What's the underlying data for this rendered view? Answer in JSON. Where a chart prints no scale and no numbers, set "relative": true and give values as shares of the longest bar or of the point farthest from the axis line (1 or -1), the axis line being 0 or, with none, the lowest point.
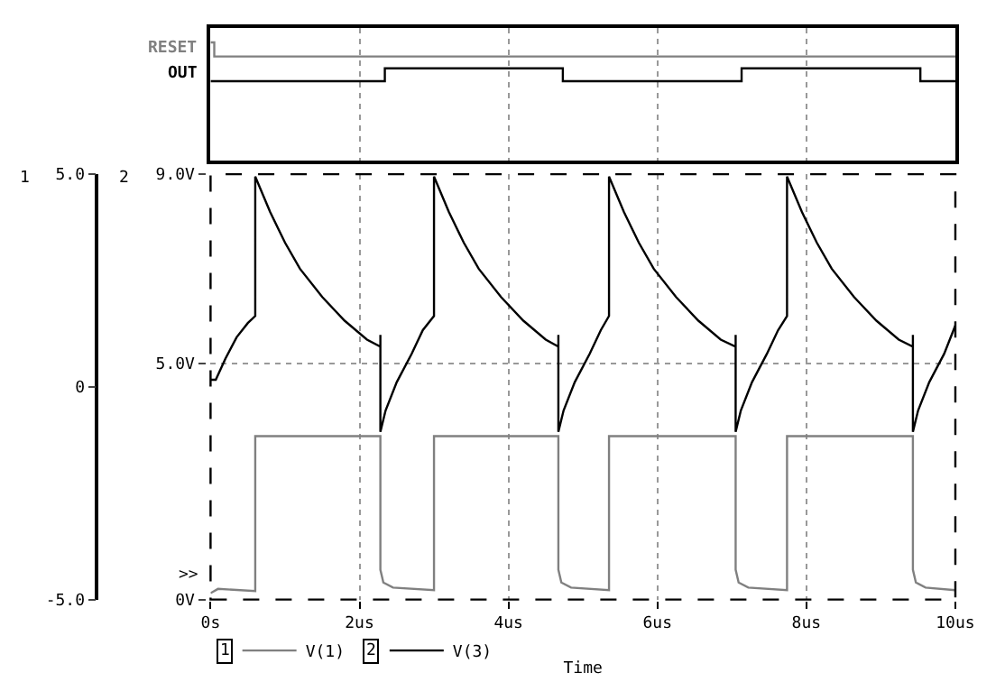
{
  "chart_data": [
    {
      "type": "step",
      "relative": true,
      "xlim": [
        0,
        10
      ],
      "grid": "x",
      "tick_labels": false,
      "xticks": [
        {
          "value": 0,
          "label": null
        },
        {
          "value": 2,
          "label": null
        },
        {
          "value": 4,
          "label": null
        },
        {
          "value": 6,
          "label": null
        },
        {
          "value": 8,
          "label": null
        },
        {
          "value": 10,
          "label": null
        }
      ],
      "series": [
        {
          "name": "RESET",
          "color": "#808080",
          "x": [
            0,
            0.05,
            10
          ],
          "values": [
            1,
            0.88,
            0.88
          ]
        },
        {
          "name": "OUT",
          "color": "#000000",
          "x": [
            0,
            2.34,
            4.73,
            7.13,
            9.53,
            10
          ],
          "values": [
            0.67,
            0.78,
            0.67,
            0.78,
            0.67,
            0.67
          ]
        }
      ]
    },
    {
      "type": "line",
      "xlabel": "Time",
      "xlim": [
        0,
        10
      ],
      "xticks": [
        {
          "value": 0,
          "label": "0s"
        },
        {
          "value": 2,
          "label": "2us"
        },
        {
          "value": 4,
          "label": "4us"
        },
        {
          "value": 6,
          "label": "6us"
        },
        {
          "value": 8,
          "label": "8us"
        },
        {
          "value": 10,
          "label": "10us"
        }
      ],
      "ylim": [
        -5,
        5
      ],
      "yticks": [
        {
          "value": -5,
          "label": "-5.0"
        },
        0,
        {
          "value": 5,
          "label": "5.0"
        }
      ],
      "y2lim": [
        0,
        9
      ],
      "y2ticks": [
        {
          "value": 0,
          "label": "0V"
        },
        {
          "value": 5,
          "label": "5.0V"
        },
        {
          "value": 9,
          "label": "9.0V"
        }
      ],
      "grid": true,
      "legend": "bottom",
      "annotations": [
        "1",
        "2",
        ">>",
        "1",
        "2"
      ],
      "series": [
        {
          "name": "V(1)",
          "color": "#808080",
          "axis": "y",
          "x": [
            0,
            0.1,
            0.6,
            0.6,
            2.28,
            2.28,
            2.32,
            2.45,
            3.0,
            3.0,
            4.67,
            4.67,
            4.71,
            4.84,
            5.35,
            5.35,
            7.05,
            7.05,
            7.09,
            7.22,
            7.74,
            7.74,
            9.43,
            9.43,
            9.47,
            9.6,
            10
          ],
          "values": [
            -4.85,
            -4.75,
            -4.8,
            -1.16,
            -1.16,
            -4.3,
            -4.6,
            -4.72,
            -4.78,
            -1.16,
            -1.16,
            -4.3,
            -4.6,
            -4.72,
            -4.78,
            -1.16,
            -1.16,
            -4.3,
            -4.6,
            -4.72,
            -4.78,
            -1.16,
            -1.16,
            -4.3,
            -4.6,
            -4.72,
            -4.78
          ]
        },
        {
          "name": "V(3)",
          "color": "#000000",
          "axis": "y2",
          "x": [
            0,
            0.07,
            0.2,
            0.35,
            0.5,
            0.6,
            0.6,
            0.8,
            1.0,
            1.2,
            1.5,
            1.8,
            2.1,
            2.28,
            2.28,
            2.28,
            2.35,
            2.5,
            2.7,
            2.85,
            3.0,
            3.0,
            3.2,
            3.4,
            3.6,
            3.9,
            4.2,
            4.5,
            4.67,
            4.67,
            4.67,
            4.74,
            4.89,
            5.09,
            5.24,
            5.35,
            5.35,
            5.55,
            5.75,
            5.95,
            6.25,
            6.55,
            6.85,
            7.05,
            7.05,
            7.05,
            7.12,
            7.27,
            7.47,
            7.62,
            7.74,
            7.74,
            7.94,
            8.14,
            8.34,
            8.64,
            8.94,
            9.24,
            9.43,
            9.43,
            9.43,
            9.5,
            9.65,
            9.85,
            10.0
          ],
          "values": [
            4.65,
            4.65,
            5.1,
            5.55,
            5.85,
            6.0,
            8.95,
            8.2,
            7.55,
            7.0,
            6.4,
            5.9,
            5.5,
            5.35,
            5.6,
            3.55,
            4.0,
            4.6,
            5.2,
            5.7,
            6.0,
            8.95,
            8.2,
            7.55,
            7.0,
            6.4,
            5.9,
            5.5,
            5.35,
            5.6,
            3.55,
            4.0,
            4.6,
            5.2,
            5.7,
            6.0,
            8.95,
            8.2,
            7.55,
            7.0,
            6.4,
            5.9,
            5.5,
            5.35,
            5.6,
            3.55,
            4.0,
            4.6,
            5.2,
            5.7,
            6.0,
            8.95,
            8.2,
            7.55,
            7.0,
            6.4,
            5.9,
            5.5,
            5.35,
            5.6,
            3.55,
            4.0,
            4.6,
            5.2,
            5.8
          ]
        }
      ]
    }
  ]
}
